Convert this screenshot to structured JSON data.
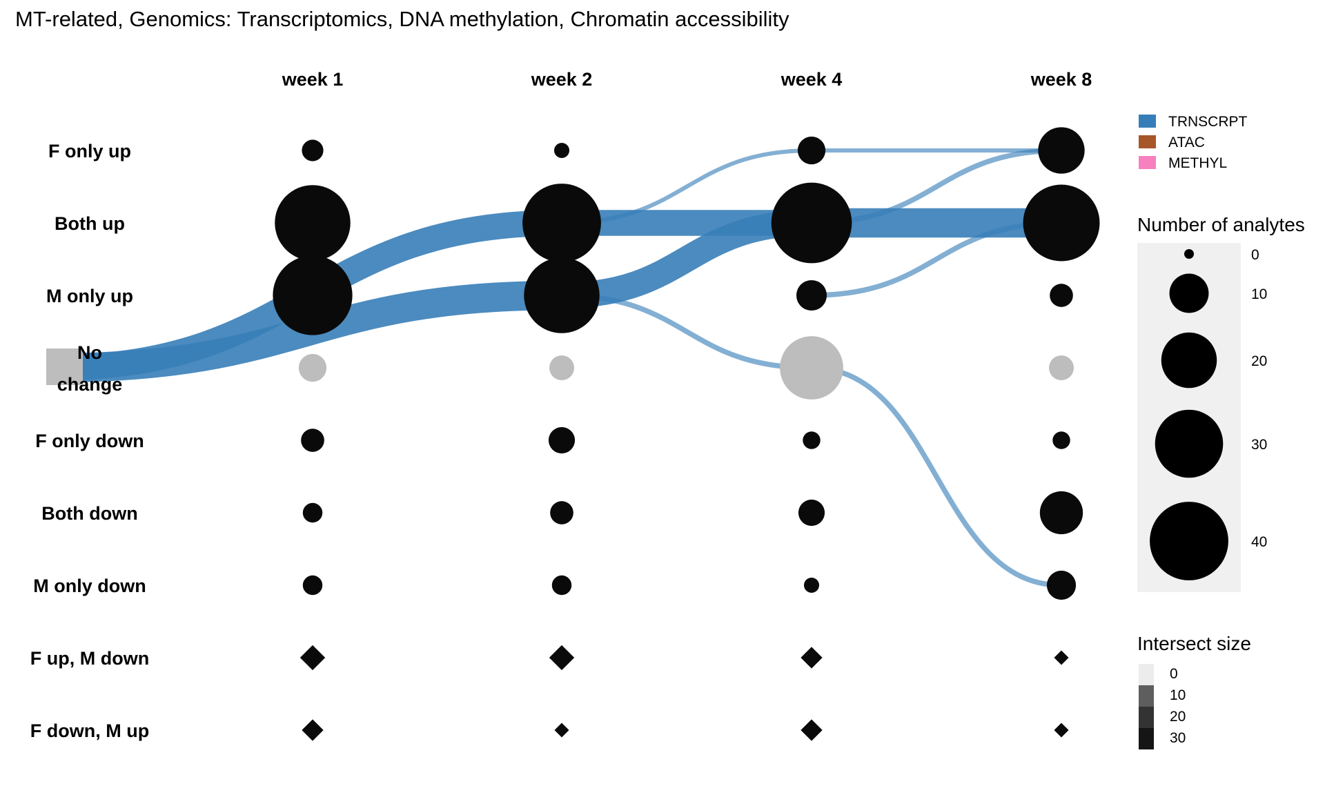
{
  "chart_data": {
    "type": "bubble-flow",
    "title": "MT-related, Genomics: Transcriptomics, DNA methylation, Chromatin accessibility",
    "columns": [
      "week 1",
      "week 2",
      "week 4",
      "week 8"
    ],
    "rows": [
      "F only up",
      "Both up",
      "M only up",
      "No change",
      "F only down",
      "Both down",
      "M only down",
      "F up, M down",
      "F down, M up"
    ],
    "no_change_label_lines": [
      "No",
      "change"
    ],
    "nodes": [
      {
        "row": "F only up",
        "values": [
          3,
          1.5,
          5,
          14
        ]
      },
      {
        "row": "Both up",
        "values": [
          37,
          40,
          42,
          38
        ]
      },
      {
        "row": "M only up",
        "values": [
          41,
          37,
          6,
          3.5
        ]
      },
      {
        "row": "No change",
        "values": [
          5,
          4,
          26,
          4
        ],
        "color": "#bdbdbd"
      },
      {
        "row": "F only down",
        "values": [
          3.5,
          4.5,
          2,
          2
        ]
      },
      {
        "row": "Both down",
        "values": [
          2.5,
          3.5,
          4.5,
          12
        ]
      },
      {
        "row": "M only down",
        "values": [
          2.5,
          2.5,
          1.5,
          5.5
        ]
      },
      {
        "row": "F up, M down",
        "shape": "diamond",
        "values": [
          5,
          5,
          3,
          0.5
        ]
      },
      {
        "row": "F down, M up",
        "shape": "diamond",
        "values": [
          3,
          0.5,
          3,
          0.5
        ]
      }
    ],
    "flows": [
      {
        "from": [
          0,
          "No change"
        ],
        "to": [
          1,
          "Both up"
        ],
        "size": 15
      },
      {
        "from": [
          0,
          "No change"
        ],
        "to": [
          1,
          "M only up"
        ],
        "size": 17
      },
      {
        "from": [
          1,
          "Both up"
        ],
        "to": [
          2,
          "Both up"
        ],
        "size": 15
      },
      {
        "from": [
          1,
          "M only up"
        ],
        "to": [
          2,
          "Both up"
        ],
        "size": 15
      },
      {
        "from": [
          2,
          "Both up"
        ],
        "to": [
          3,
          "Both up"
        ],
        "size": 17
      },
      {
        "from": [
          2,
          "No change"
        ],
        "to": [
          3,
          "M only down"
        ],
        "size": 3
      },
      {
        "from": [
          1,
          "Both up"
        ],
        "to": [
          2,
          "F only up"
        ],
        "size": 2
      },
      {
        "from": [
          1,
          "M only up"
        ],
        "to": [
          2,
          "No change"
        ],
        "size": 3
      },
      {
        "from": [
          2,
          "F only up"
        ],
        "to": [
          3,
          "F only up"
        ],
        "size": 2
      },
      {
        "from": [
          2,
          "Both up"
        ],
        "to": [
          3,
          "F only up"
        ],
        "size": 3
      },
      {
        "from": [
          2,
          "M only up"
        ],
        "to": [
          3,
          "Both up"
        ],
        "size": 3
      }
    ],
    "legend": {
      "colors": [
        {
          "label": "TRNSCRPT",
          "color": "#377eb8"
        },
        {
          "label": "ATAC",
          "color": "#a65628"
        },
        {
          "label": "METHYL",
          "color": "#f781bf"
        }
      ],
      "size_title": "Number of analytes",
      "size_values": [
        0,
        10,
        20,
        30,
        40
      ],
      "intersect_title": "Intersect size",
      "intersect_values": [
        0,
        10,
        20,
        30
      ]
    }
  }
}
